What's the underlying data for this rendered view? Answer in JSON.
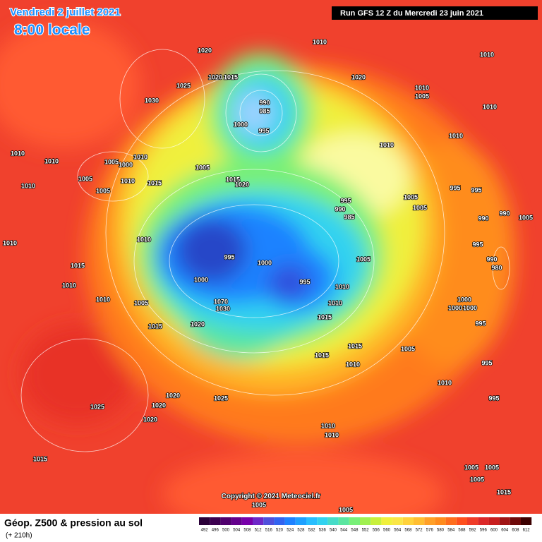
{
  "header": {
    "date": "Vendredi 2 juillet 2021",
    "time": "8:00 locale",
    "run": "Run GFS 12 Z du Mercredi 23 juin 2021"
  },
  "map": {
    "pressure_labels": [
      1010,
      1020,
      1010,
      1025,
      1020,
      1015,
      990,
      985,
      1000,
      995,
      1030,
      1020,
      1010,
      1005,
      1010,
      1010,
      1010,
      1010,
      1010,
      1005,
      1000,
      1010,
      1005,
      1005,
      1010,
      1015,
      1005,
      1015,
      1020,
      1010,
      995,
      990,
      985,
      1005,
      1005,
      995,
      995,
      990,
      990,
      1005,
      995,
      990,
      980,
      1010,
      1010,
      995,
      1000,
      1015,
      1010,
      1000,
      995,
      1005,
      1010,
      1010,
      1005,
      1070,
      1030,
      1010,
      1015,
      1015,
      1020,
      1000,
      1000,
      1000,
      995,
      1005,
      1015,
      1015,
      1010,
      995,
      1010,
      1020,
      1025,
      1020,
      1025,
      1020,
      995,
      1010,
      1010,
      1015,
      1005,
      1005,
      1005,
      1015,
      1005,
      1005
    ]
  },
  "copyright": "Copyright © 2021 Meteociel.fr",
  "footer": {
    "title": "Géop. Z500 & pression au sol",
    "lead": "(+ 210h)"
  },
  "legend": {
    "labels": [
      492,
      496,
      500,
      504,
      508,
      512,
      516,
      520,
      524,
      528,
      532,
      536,
      540,
      544,
      548,
      552,
      556,
      560,
      564,
      568,
      572,
      576,
      580,
      584,
      588,
      592,
      596,
      600,
      604,
      608,
      612
    ],
    "colors": [
      "#2a0038",
      "#3c0050",
      "#50006e",
      "#64008c",
      "#7800aa",
      "#6e28c8",
      "#5050dc",
      "#3264f0",
      "#1e82ff",
      "#1ea0ff",
      "#28beff",
      "#32d2f0",
      "#46dcc8",
      "#5ae6a0",
      "#78f078",
      "#a0f050",
      "#c8f03c",
      "#f0f03c",
      "#fae646",
      "#ffd23c",
      "#ffbe32",
      "#ffa028",
      "#ff8c1e",
      "#ff6e1e",
      "#ff501e",
      "#f03c28",
      "#dc2828",
      "#c81e1e",
      "#a01414",
      "#6e0a0a",
      "#3c0000"
    ]
  }
}
